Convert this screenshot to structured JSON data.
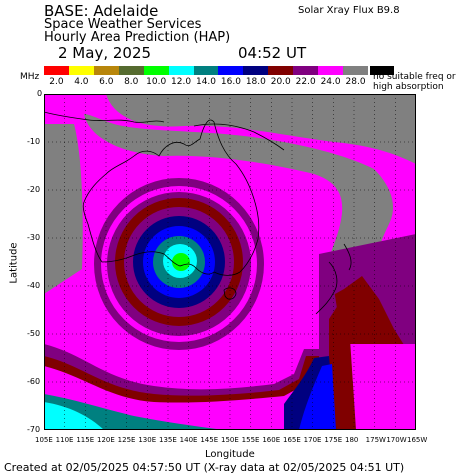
{
  "header": {
    "base": "BASE: Adelaide",
    "line2": "Space Weather Services",
    "line3": "Hourly Area Prediction (HAP)",
    "date": "2 May, 2025",
    "time": "04:52 UT",
    "flux": "Solar Xray Flux B9.8"
  },
  "legend": {
    "unit": "MHz",
    "swatches": [
      {
        "label": "2.0",
        "color": "#ff0000"
      },
      {
        "label": "4.0",
        "color": "#ffff00"
      },
      {
        "label": "6.0",
        "color": "#b8860b"
      },
      {
        "label": "8.0",
        "color": "#556b2f"
      },
      {
        "label": "10.0",
        "color": "#00ff00"
      },
      {
        "label": "12.0",
        "color": "#00ffff"
      },
      {
        "label": "14.0",
        "color": "#008080"
      },
      {
        "label": "16.0",
        "color": "#0000ff"
      },
      {
        "label": "18.0",
        "color": "#000080"
      },
      {
        "label": "20.0",
        "color": "#800000"
      },
      {
        "label": "22.0",
        "color": "#800080"
      },
      {
        "label": "24.0",
        "color": "#ff00ff"
      },
      {
        "label": "28.0",
        "color": "#808080"
      }
    ],
    "note_line1": "no suitable freq or",
    "note_line2": "high absorption"
  },
  "axes": {
    "ylabel": "Latitude",
    "xlabel": "Longitude",
    "yticks": [
      "0",
      "-10",
      "-20",
      "-30",
      "-40",
      "-50",
      "-60",
      "-70"
    ],
    "xticks": [
      "105E",
      "110E",
      "115E",
      "120E",
      "125E",
      "130E",
      "135E",
      "140E",
      "145E",
      "150E",
      "155E",
      "160E",
      "165E",
      "170E",
      "175E",
      "180",
      "175W",
      "170W",
      "165W"
    ]
  },
  "footer": "Created at 02/05/2025 04:57:50 UT (X-ray data at 02/05/2025 04:51 UT)"
}
